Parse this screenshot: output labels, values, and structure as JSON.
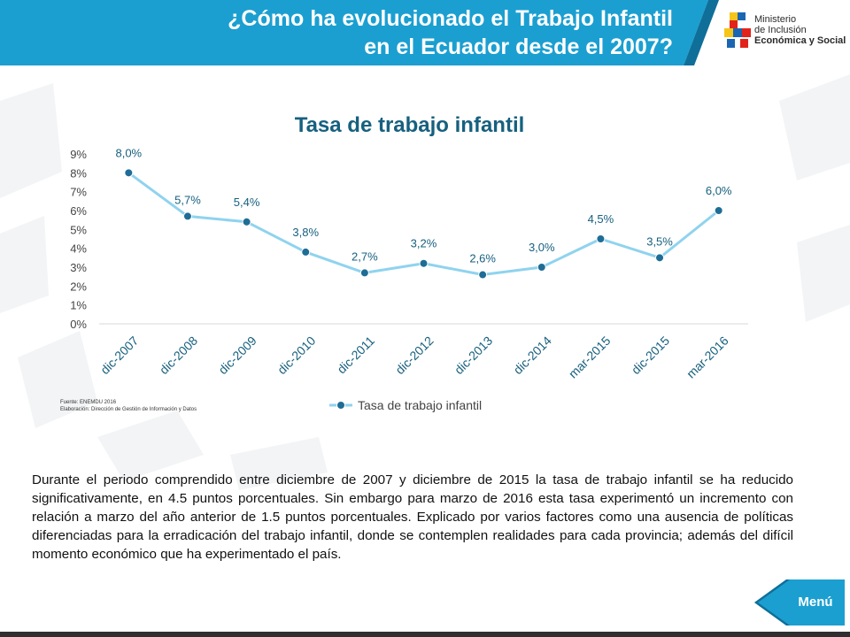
{
  "header": {
    "title_line1": "¿Cómo ha evolucionado el Trabajo Infantil",
    "title_line2": "en el Ecuador desde el 2007?",
    "logo_line1": "Ministerio",
    "logo_line2": "de Inclusión",
    "logo_line3": "Económica y Social"
  },
  "colors": {
    "header": "#1b9fd1",
    "title": "#17607f",
    "line": "#8fd3ef",
    "marker": "#1e6d96",
    "menu": "#1b9fd1"
  },
  "source": {
    "line1": "Fuente: ENEMDU 2016",
    "line2": "Elaboración: Dirección de Gestión de Información y Datos"
  },
  "chart_data": {
    "type": "line",
    "title": "Tasa de trabajo infantil",
    "categories": [
      "dic-2007",
      "dic-2008",
      "dic-2009",
      "dic-2010",
      "dic-2011",
      "dic-2012",
      "dic-2013",
      "dic-2014",
      "mar-2015",
      "dic-2015",
      "mar-2016"
    ],
    "series": [
      {
        "name": "Tasa de trabajo infantil",
        "values": [
          8.0,
          5.7,
          5.4,
          3.8,
          2.7,
          3.2,
          2.6,
          3.0,
          4.5,
          3.5,
          6.0
        ],
        "labels": [
          "8,0%",
          "5,7%",
          "5,4%",
          "3,8%",
          "2,7%",
          "3,2%",
          "2,6%",
          "3,0%",
          "4,5%",
          "3,5%",
          "6,0%"
        ]
      }
    ],
    "ylim": [
      0,
      9
    ],
    "yticks": [
      "0%",
      "1%",
      "2%",
      "3%",
      "4%",
      "5%",
      "6%",
      "7%",
      "8%",
      "9%"
    ],
    "grid": false,
    "legend_position": "bottom"
  },
  "body": {
    "paragraph": "Durante el periodo comprendido entre diciembre de 2007 y diciembre de 2015 la tasa de trabajo infantil se ha reducido significativamente, en 4.5 puntos porcentuales. Sin embargo para marzo de 2016 esta tasa experimentó un incremento con relación a marzo del año anterior de 1.5 puntos porcentuales. Explicado por varios factores como una ausencia de políticas diferenciadas para la erradicación del trabajo infantil, donde se contemplen realidades para cada provincia; además del difícil momento económico que ha experimentado el país."
  },
  "nav": {
    "menu_label": "Menú"
  }
}
